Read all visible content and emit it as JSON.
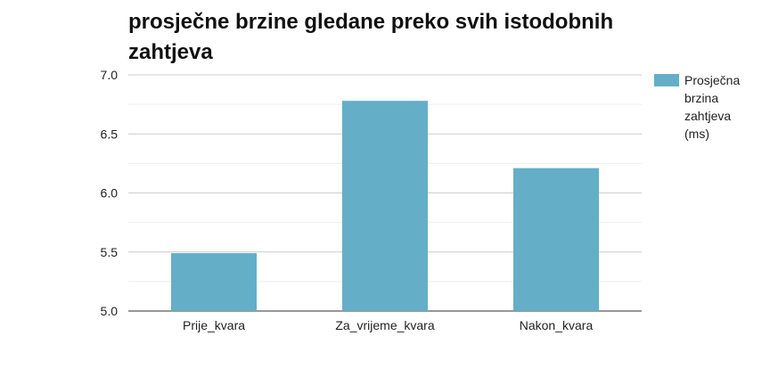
{
  "chart_data": {
    "type": "bar",
    "title": "prosječne brzine gledane preko svih istodobnih zahtjeva",
    "categories": [
      "Prije_kvara",
      "Za_vrijeme_kvara",
      "Nakon_kvara"
    ],
    "series": [
      {
        "name": "Prosječna brzina zahtjeva (ms)",
        "values": [
          5.49,
          6.78,
          6.21
        ]
      }
    ],
    "ylim": [
      5.0,
      7.0
    ],
    "yticks": [
      "5.0",
      "5.5",
      "6.0",
      "6.5",
      "7.0"
    ],
    "xlabel": "",
    "ylabel": "",
    "grid": true,
    "legend": "right"
  },
  "colors": {
    "bar": "#64aec8",
    "grid": "#cccccc",
    "minor_grid": "#eeeeee"
  }
}
